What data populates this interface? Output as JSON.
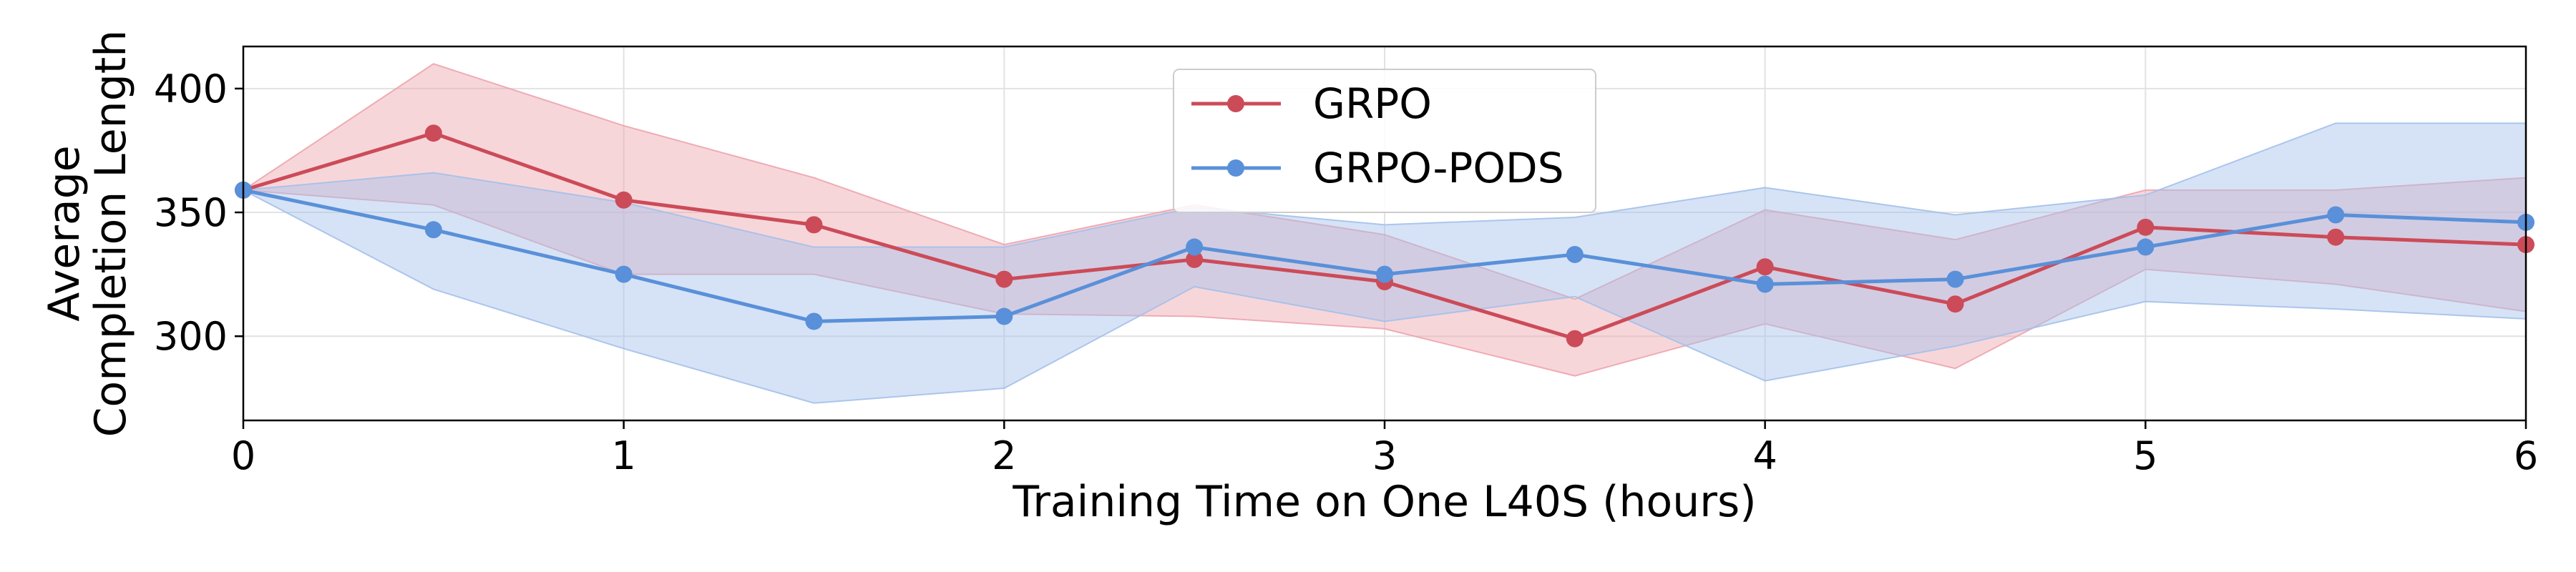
{
  "chart_data": {
    "type": "line",
    "title": "",
    "xlabel": "Training Time on One L40S (hours)",
    "ylabel_lines": [
      "Average",
      "Completion Length"
    ],
    "xlim": [
      0,
      6
    ],
    "ylim": [
      266,
      417
    ],
    "xticks": [
      0,
      1,
      2,
      3,
      4,
      5,
      6
    ],
    "xtick_labels": [
      "0",
      "1",
      "2",
      "3",
      "4",
      "5",
      "6"
    ],
    "yticks": [
      300,
      350,
      400
    ],
    "ytick_labels": [
      "300",
      "350",
      "400"
    ],
    "grid": true,
    "legend_position": "upper-center",
    "x": [
      0,
      0.5,
      1,
      1.5,
      2,
      2.5,
      3,
      3.5,
      4,
      4.5,
      5,
      5.5,
      6
    ],
    "series": [
      {
        "name": "GRPO",
        "color": "#cc4b58",
        "band_color": "#eda4ae",
        "values": [
          359,
          382,
          355,
          345,
          323,
          331,
          322,
          299,
          328,
          313,
          344,
          340,
          337
        ],
        "lower": [
          359,
          353,
          325,
          325,
          309,
          308,
          303,
          284,
          305,
          287,
          327,
          321,
          310
        ],
        "upper": [
          359,
          410,
          385,
          364,
          337,
          353,
          341,
          315,
          351,
          339,
          359,
          359,
          364
        ]
      },
      {
        "name": "GRPO-PODS",
        "color": "#5990d9",
        "band_color": "#a4c0ea",
        "values": [
          359,
          343,
          325,
          306,
          308,
          336,
          325,
          333,
          321,
          323,
          336,
          349,
          346
        ],
        "lower": [
          359,
          319,
          295,
          273,
          279,
          320,
          306,
          316,
          282,
          296,
          314,
          311,
          307
        ],
        "upper": [
          359,
          366,
          354,
          336,
          336,
          352,
          345,
          348,
          360,
          349,
          357,
          386,
          386
        ]
      }
    ]
  }
}
